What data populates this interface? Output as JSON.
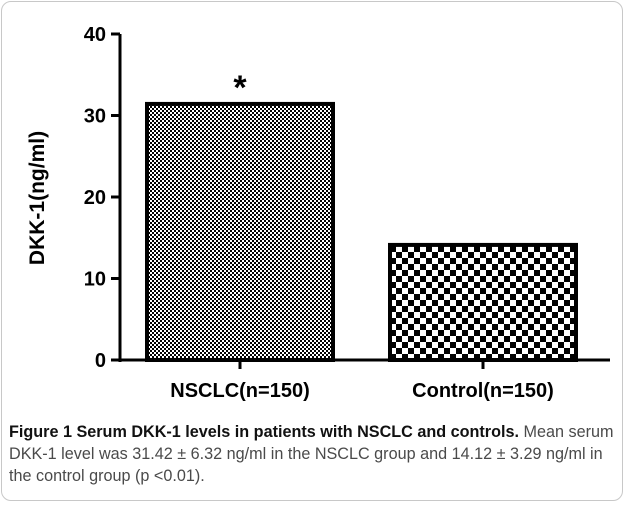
{
  "chart_data": {
    "type": "bar",
    "categories": [
      "NSCLC(n=150)",
      "Control(n=150)"
    ],
    "values": [
      31.42,
      14.12
    ],
    "ylabel": "DKK-1(ng/ml)",
    "xlabel": "",
    "ylim": [
      0,
      40
    ],
    "yticks": [
      0,
      10,
      20,
      30,
      40
    ],
    "grid": false,
    "annotations": [
      {
        "category": "NSCLC(n=150)",
        "text": "*"
      }
    ],
    "patterns": [
      "fine-checker",
      "coarse-checker"
    ]
  },
  "caption": {
    "title": "Figure 1 Serum DKK-1 levels in patients with NSCLC and controls.",
    "body": " Mean serum DKK-1 level was 31.42 ± 6.32 ng/ml in the NSCLC group and 14.12 ± 3.29 ng/ml in the control group (p <0.01)."
  },
  "colors": {
    "bar_dark": "#000000",
    "bar_light": "#ffffff",
    "axis": "#000000"
  }
}
